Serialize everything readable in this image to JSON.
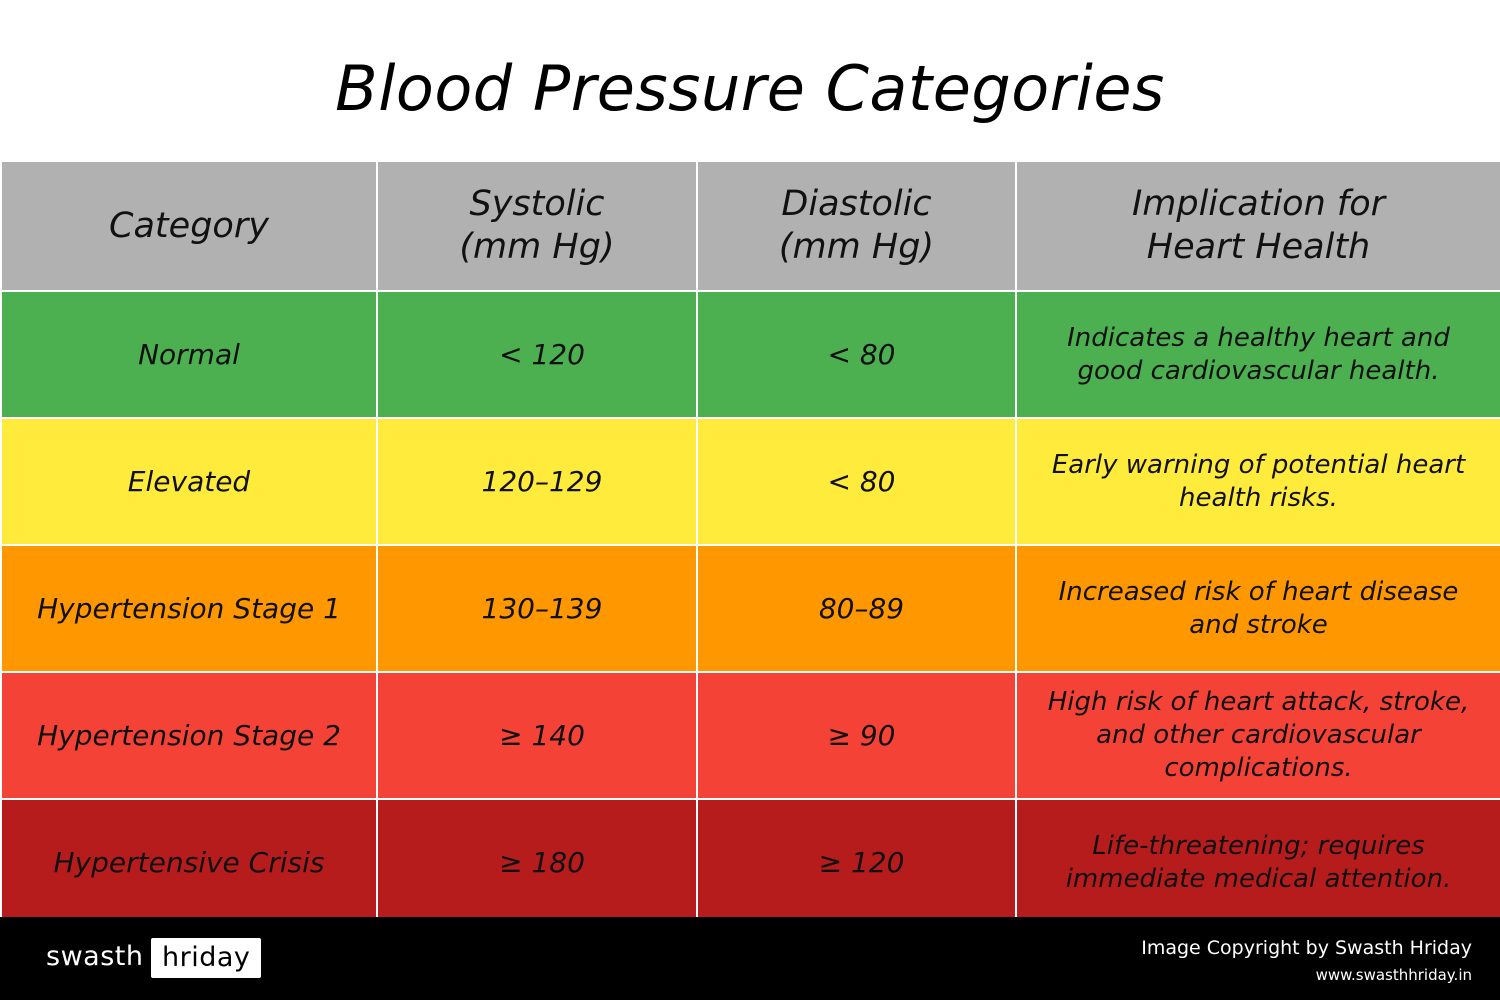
{
  "title": "Blood Pressure Categories",
  "table": {
    "headers": {
      "category": "Category",
      "systolic": "Systolic\n(mm Hg)",
      "diastolic": "Diastolic\n(mm Hg)",
      "implication": "Implication for\nHeart Health"
    },
    "header_color": "#b1b1b1",
    "rows": [
      {
        "category": "Normal",
        "systolic": "< 120",
        "diastolic": "< 80",
        "implication": "Indicates a healthy heart and good cardiovascular health.",
        "color": "#4caf50"
      },
      {
        "category": "Elevated",
        "systolic": "120–129",
        "diastolic": "< 80",
        "implication": "Early warning of potential heart health risks.",
        "color": "#ffeb3b"
      },
      {
        "category": "Hypertension Stage 1",
        "systolic": "130–139",
        "diastolic": "80–89",
        "implication": "Increased risk of heart disease and stroke",
        "color": "#ff9800"
      },
      {
        "category": "Hypertension Stage 2",
        "systolic": "≥ 140",
        "diastolic": "≥ 90",
        "implication": "High risk of heart attack, stroke, and other cardiovascular complications.",
        "color": "#f44336"
      },
      {
        "category": "Hypertensive Crisis",
        "systolic": "≥ 180",
        "diastolic": "≥ 120",
        "implication": "Life-threatening; requires immediate medical attention.",
        "color": "#b71c1c"
      }
    ]
  },
  "footer": {
    "brand_part1": "swasth",
    "brand_part2": "hriday",
    "copyright": "Image Copyright by Swasth Hriday",
    "url": "www.swasthhriday.in"
  }
}
